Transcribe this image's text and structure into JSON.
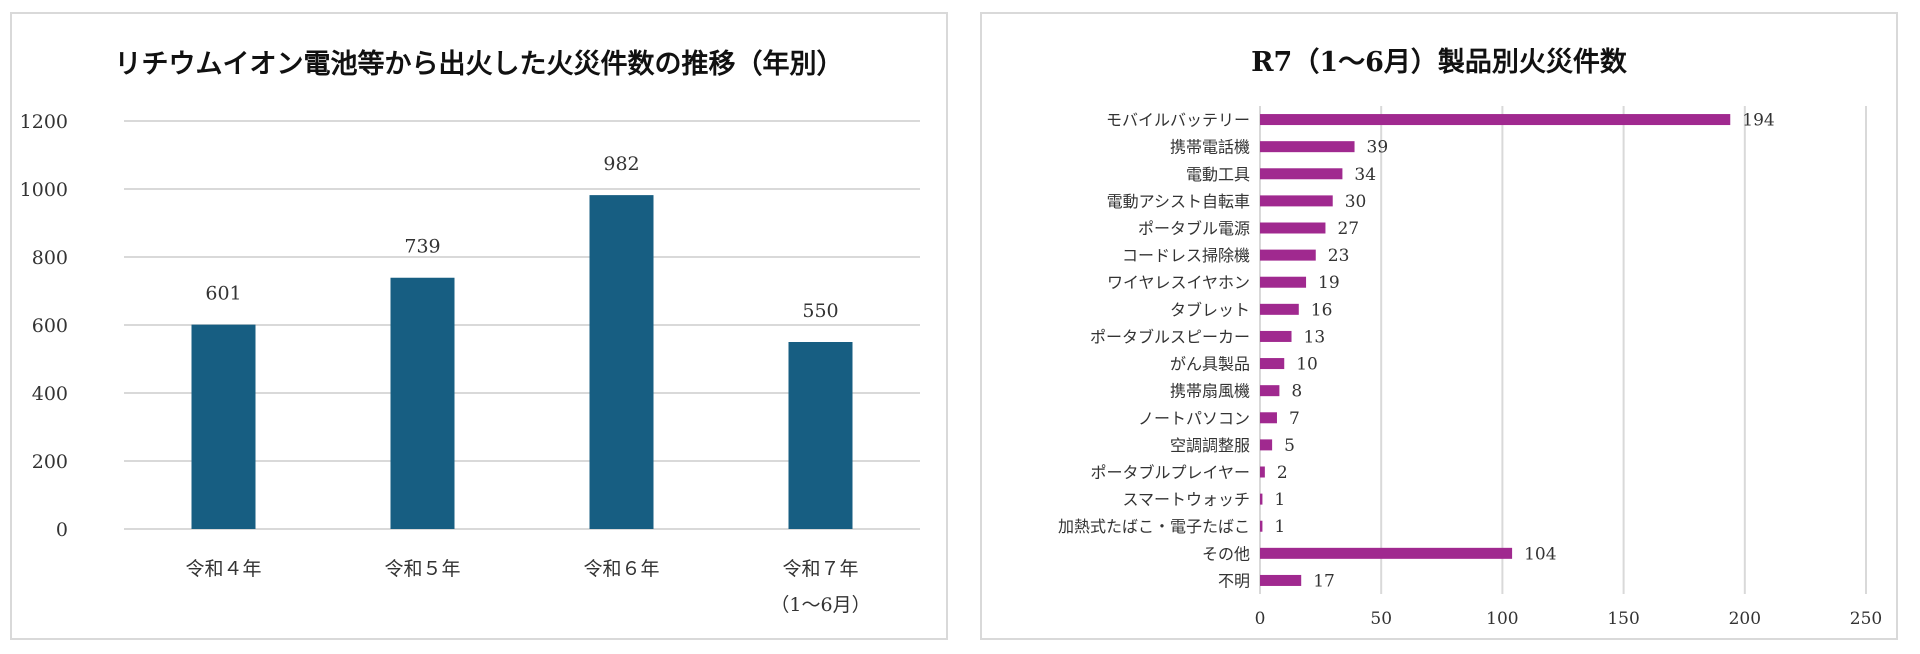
{
  "chart_data": [
    {
      "type": "bar",
      "title": "リチウムイオン電池等から出火した火災件数の推移（年別）",
      "categories": [
        "令和４年",
        "令和５年",
        "令和６年",
        "令和７年"
      ],
      "category_sublabels": [
        "",
        "",
        "",
        "（1～6月）"
      ],
      "values": [
        601,
        739,
        982,
        550
      ],
      "ylim": [
        0,
        1200
      ],
      "yticks": [
        0,
        200,
        400,
        600,
        800,
        1000,
        1200
      ],
      "grid": true,
      "bar_color": "#175e82"
    },
    {
      "type": "bar",
      "orientation": "horizontal",
      "title": "R7（1～6月）製品別火災件数",
      "categories": [
        "モバイルバッテリー",
        "携帯電話機",
        "電動工具",
        "電動アシスト自転車",
        "ポータブル電源",
        "コードレス掃除機",
        "ワイヤレスイヤホン",
        "タブレット",
        "ポータブルスピーカー",
        "がん具製品",
        "携帯扇風機",
        "ノートパソコン",
        "空調調整服",
        "ポータブルプレイヤー",
        "スマートウォッチ",
        "加熱式たばこ・電子たばこ",
        "その他",
        "不明"
      ],
      "values": [
        194,
        39,
        34,
        30,
        27,
        23,
        19,
        16,
        13,
        10,
        8,
        7,
        5,
        2,
        1,
        1,
        104,
        17
      ],
      "xlim": [
        0,
        250
      ],
      "xticks": [
        0,
        50,
        100,
        150,
        200,
        250
      ],
      "grid": true,
      "bar_color": "#a0298f"
    }
  ]
}
